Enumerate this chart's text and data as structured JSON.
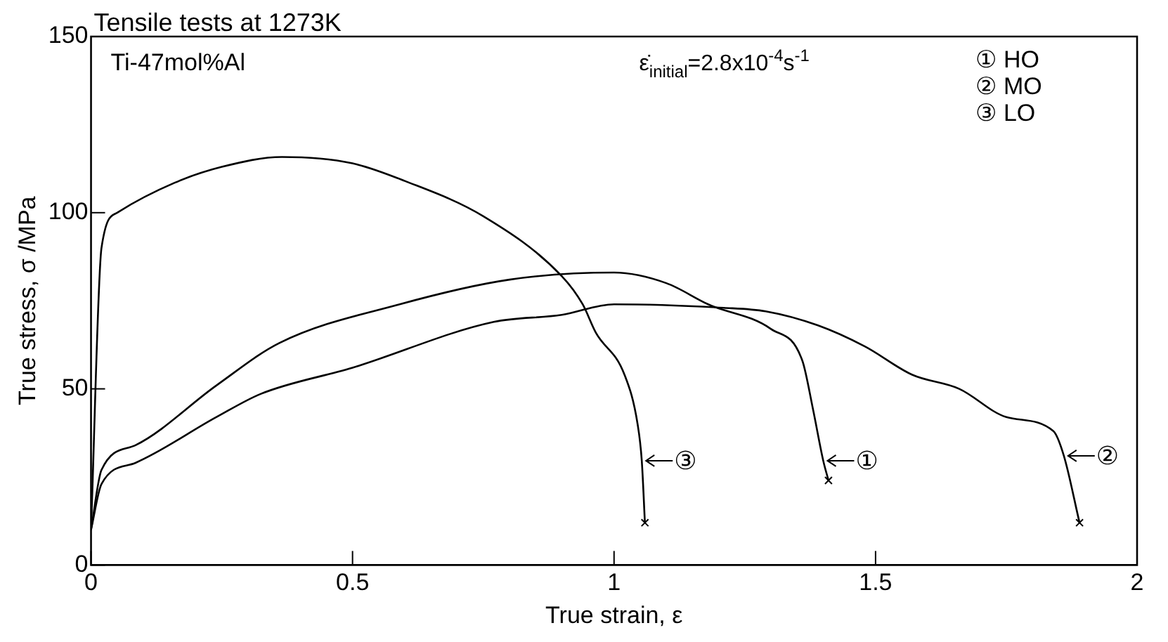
{
  "chart_data": {
    "type": "line",
    "title": "Tensile tests at 1273K",
    "xlabel": "True strain, ε",
    "ylabel": "True stress, σ /MPa",
    "xlim": [
      0,
      2
    ],
    "xticks": [
      0,
      0.5,
      1,
      1.5,
      2
    ],
    "ylim": [
      0,
      150
    ],
    "yticks": [
      0,
      50,
      100,
      150
    ],
    "grid": false,
    "line_style": "solid",
    "legend": "right",
    "series": [
      {
        "name": "①",
        "color": "#000000",
        "x": [
          0,
          0.02,
          0.085,
          0.24,
          0.36,
          0.59,
          0.8,
          1.0,
          1.1,
          1.18,
          1.3,
          1.36,
          1.38,
          1.4,
          1.41
        ],
        "values": [
          10,
          27,
          34,
          51,
          63,
          74,
          81,
          83,
          80,
          74,
          67,
          58,
          44.5,
          29.6,
          24
        ]
      },
      {
        "name": "②",
        "color": "#000000",
        "x": [
          0,
          0.02,
          0.085,
          0.24,
          0.325,
          0.5,
          0.77,
          0.9,
          1.0,
          1.21,
          1.29,
          1.39,
          1.48,
          1.57,
          1.66,
          1.75,
          1.84,
          1.86,
          1.89
        ],
        "values": [
          10,
          23,
          29,
          42,
          48.6,
          56,
          69,
          71,
          74,
          73,
          72,
          68,
          62,
          54,
          50,
          42,
          38,
          31,
          12
        ]
      },
      {
        "name": "③",
        "color": "#000000",
        "x": [
          0,
          0.02,
          0.05,
          0.16,
          0.25,
          0.365,
          0.5,
          0.6,
          0.75,
          0.9,
          0.94,
          0.965,
          1.02,
          1.045,
          1.053,
          1.059
        ],
        "values": [
          10,
          90,
          100,
          108.5,
          113,
          115.8,
          114,
          109,
          99,
          82,
          74,
          66,
          54,
          40,
          29.6,
          12
        ]
      }
    ],
    "annotations": [
      "Ti-47mol%Al",
      "ε̇$_{initial}$=2.8x10$^{-4}$s$^{-1}$",
      "① HO",
      "② MO",
      "③ LO"
    ]
  }
}
